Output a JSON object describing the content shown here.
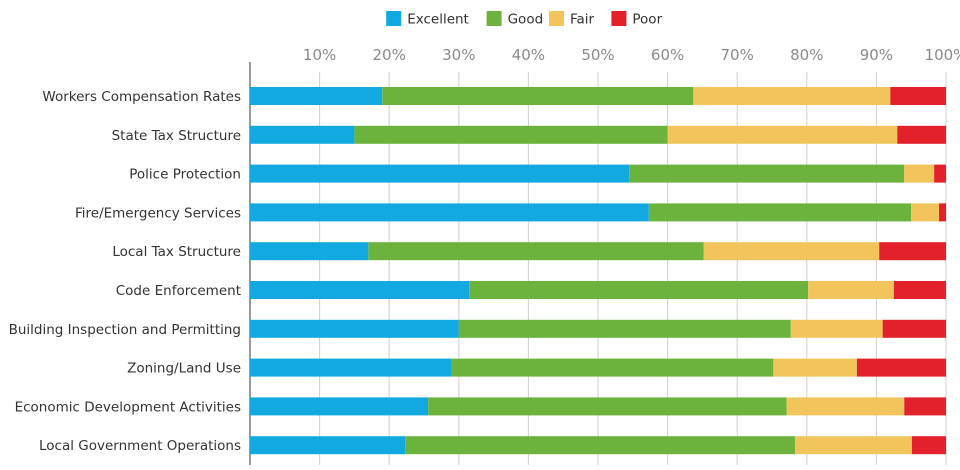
{
  "chart_data": {
    "type": "bar",
    "orientation": "horizontal",
    "stacked": true,
    "title": "",
    "xlabel": "",
    "ylabel": "",
    "xlim": [
      0,
      100
    ],
    "x_ticks": [
      "10%",
      "20%",
      "30%",
      "40%",
      "50%",
      "60%",
      "70%",
      "80%",
      "90%",
      "100%"
    ],
    "grid": true,
    "legend_position": "top-center",
    "categories": [
      "Workers Compensation Rates",
      "State Tax Structure",
      "Police Protection",
      "Fire/Emergency Services",
      "Local Tax Structure",
      "Code Enforcement",
      "Building Inspection and Permitting",
      "Zoning/Land Use",
      "Economic Development Activities",
      "Local Government Operations"
    ],
    "series": [
      {
        "name": "Excellent",
        "color": "#11a9e0",
        "values": [
          19,
          15,
          54.5,
          57.3,
          17,
          31.5,
          30,
          29,
          25.6,
          22.3
        ]
      },
      {
        "name": "Good",
        "color": "#6bb33c",
        "values": [
          44.7,
          45,
          39.5,
          37.7,
          48.2,
          48.7,
          47.7,
          46.2,
          51.5,
          56
        ]
      },
      {
        "name": "Fair",
        "color": "#f2c55c",
        "values": [
          28.3,
          33,
          4.3,
          4,
          25.2,
          12.3,
          13.2,
          12,
          16.9,
          16.8
        ]
      },
      {
        "name": "Poor",
        "color": "#e2212a",
        "values": [
          8,
          7,
          1.7,
          1,
          9.6,
          7.5,
          9.1,
          12.8,
          6,
          4.9
        ]
      }
    ]
  }
}
